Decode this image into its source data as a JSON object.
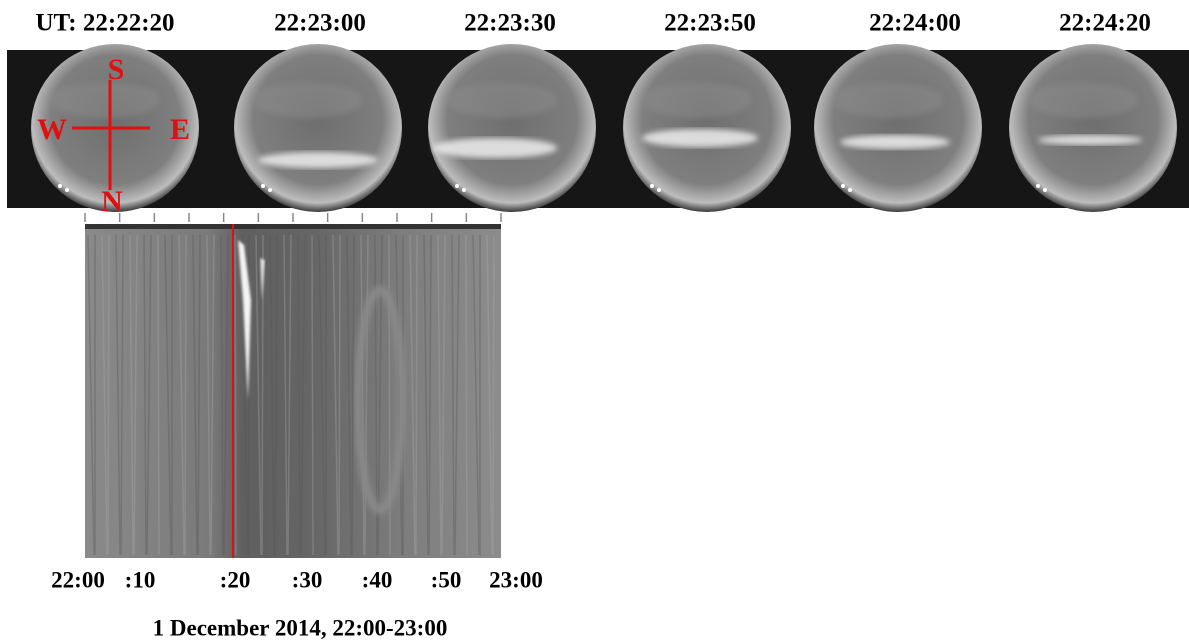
{
  "panels": {
    "labels": [
      "UT: 22:22:20",
      "22:23:00",
      "22:23:30",
      "22:23:50",
      "22:24:00",
      "22:24:20"
    ],
    "compass": {
      "south": "S",
      "west": "W",
      "east": "E",
      "north": "N"
    }
  },
  "keogram": {
    "time_labels": [
      "22:00",
      ":10",
      ":20",
      ":30",
      ":40",
      ":50",
      "23:00"
    ],
    "caption": "1 December 2014, 22:00-23:00"
  }
}
